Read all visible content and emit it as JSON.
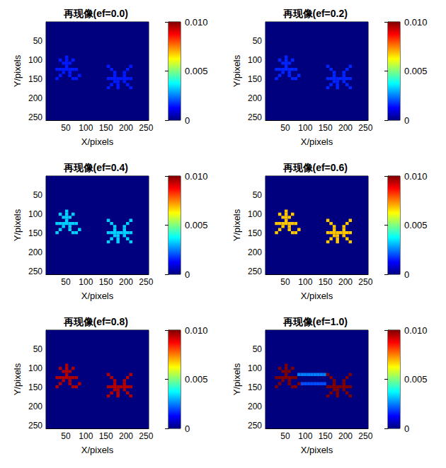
{
  "chart_data": [
    {
      "type": "heatmap",
      "title": "再现像(ef=0.0)",
      "xlabel": "X/pixels",
      "ylabel": "Y/pixels",
      "xlim": [
        0.5,
        256.5
      ],
      "ylim": [
        0.5,
        256.5
      ],
      "xticks": [
        50,
        100,
        150,
        200,
        250
      ],
      "yticks": [
        50,
        100,
        150,
        200,
        250
      ],
      "cell_size": 8,
      "background_value": 0,
      "glyph_value": 0.0015,
      "glyph_cells": [
        [
          52,
          92
        ],
        [
          52,
          100
        ],
        [
          52,
          108
        ],
        [
          52,
          116
        ],
        [
          36,
          100
        ],
        [
          44,
          108
        ],
        [
          68,
          100
        ],
        [
          60,
          108
        ],
        [
          28,
          124
        ],
        [
          36,
          124
        ],
        [
          44,
          124
        ],
        [
          52,
          124
        ],
        [
          60,
          124
        ],
        [
          68,
          124
        ],
        [
          76,
          124
        ],
        [
          44,
          132
        ],
        [
          36,
          140
        ],
        [
          28,
          148
        ],
        [
          60,
          132
        ],
        [
          60,
          140
        ],
        [
          68,
          148
        ],
        [
          76,
          148
        ],
        [
          84,
          140
        ],
        [
          156,
          116
        ],
        [
          164,
          124
        ],
        [
          172,
          132
        ],
        [
          212,
          116
        ],
        [
          204,
          124
        ],
        [
          196,
          132
        ],
        [
          172,
          140
        ],
        [
          196,
          140
        ],
        [
          156,
          148
        ],
        [
          164,
          148
        ],
        [
          172,
          148
        ],
        [
          180,
          148
        ],
        [
          188,
          148
        ],
        [
          196,
          148
        ],
        [
          204,
          148
        ],
        [
          212,
          148
        ],
        [
          172,
          156
        ],
        [
          196,
          156
        ],
        [
          180,
          156
        ],
        [
          180,
          164
        ],
        [
          180,
          172
        ],
        [
          164,
          164
        ],
        [
          156,
          172
        ],
        [
          204,
          164
        ],
        [
          212,
          172
        ]
      ],
      "colorbar": {
        "range": [
          0,
          0.01
        ],
        "ticks": [
          0,
          0.005,
          {
            "value": 0.01,
            "label": "0.010"
          }
        ]
      }
    },
    {
      "type": "heatmap",
      "title": "再现像(ef=0.2)",
      "xlabel": "X/pixels",
      "ylabel": "Y/pixels",
      "xlim": [
        0.5,
        256.5
      ],
      "ylim": [
        0.5,
        256.5
      ],
      "xticks": [
        50,
        100,
        150,
        200,
        250
      ],
      "yticks": [
        50,
        100,
        150,
        200,
        250
      ],
      "cell_size": 8,
      "background_value": 0,
      "glyph_value": 0.0016,
      "glyph_cells": [
        [
          52,
          92
        ],
        [
          52,
          100
        ],
        [
          52,
          108
        ],
        [
          52,
          116
        ],
        [
          36,
          100
        ],
        [
          44,
          108
        ],
        [
          68,
          100
        ],
        [
          60,
          108
        ],
        [
          28,
          124
        ],
        [
          36,
          124
        ],
        [
          44,
          124
        ],
        [
          52,
          124
        ],
        [
          60,
          124
        ],
        [
          68,
          124
        ],
        [
          76,
          124
        ],
        [
          44,
          132
        ],
        [
          36,
          140
        ],
        [
          28,
          148
        ],
        [
          60,
          132
        ],
        [
          60,
          140
        ],
        [
          68,
          148
        ],
        [
          76,
          148
        ],
        [
          84,
          140
        ],
        [
          156,
          116
        ],
        [
          164,
          124
        ],
        [
          172,
          132
        ],
        [
          212,
          116
        ],
        [
          204,
          124
        ],
        [
          196,
          132
        ],
        [
          172,
          140
        ],
        [
          196,
          140
        ],
        [
          156,
          148
        ],
        [
          164,
          148
        ],
        [
          172,
          148
        ],
        [
          180,
          148
        ],
        [
          188,
          148
        ],
        [
          196,
          148
        ],
        [
          204,
          148
        ],
        [
          212,
          148
        ],
        [
          172,
          156
        ],
        [
          196,
          156
        ],
        [
          180,
          156
        ],
        [
          180,
          164
        ],
        [
          180,
          172
        ],
        [
          164,
          164
        ],
        [
          156,
          172
        ],
        [
          204,
          164
        ],
        [
          212,
          172
        ]
      ],
      "colorbar": {
        "range": [
          0,
          0.01
        ],
        "ticks": [
          0,
          0.005,
          {
            "value": 0.01,
            "label": "0.010"
          }
        ]
      }
    },
    {
      "type": "heatmap",
      "title": "再现像(ef=0.4)",
      "xlabel": "X/pixels",
      "ylabel": "Y/pixels",
      "xlim": [
        0.5,
        256.5
      ],
      "ylim": [
        0.5,
        256.5
      ],
      "xticks": [
        50,
        100,
        150,
        200,
        250
      ],
      "yticks": [
        50,
        100,
        150,
        200,
        250
      ],
      "cell_size": 8,
      "background_value": 0,
      "glyph_value": 0.0033,
      "glyph_cells": [
        [
          52,
          92
        ],
        [
          52,
          100
        ],
        [
          52,
          108
        ],
        [
          52,
          116
        ],
        [
          36,
          100
        ],
        [
          44,
          108
        ],
        [
          68,
          100
        ],
        [
          60,
          108
        ],
        [
          28,
          124
        ],
        [
          36,
          124
        ],
        [
          44,
          124
        ],
        [
          52,
          124
        ],
        [
          60,
          124
        ],
        [
          68,
          124
        ],
        [
          76,
          124
        ],
        [
          44,
          132
        ],
        [
          36,
          140
        ],
        [
          28,
          148
        ],
        [
          60,
          132
        ],
        [
          60,
          140
        ],
        [
          68,
          148
        ],
        [
          76,
          148
        ],
        [
          84,
          140
        ],
        [
          156,
          116
        ],
        [
          164,
          124
        ],
        [
          172,
          132
        ],
        [
          212,
          116
        ],
        [
          204,
          124
        ],
        [
          196,
          132
        ],
        [
          172,
          140
        ],
        [
          196,
          140
        ],
        [
          156,
          148
        ],
        [
          164,
          148
        ],
        [
          172,
          148
        ],
        [
          180,
          148
        ],
        [
          188,
          148
        ],
        [
          196,
          148
        ],
        [
          204,
          148
        ],
        [
          212,
          148
        ],
        [
          172,
          156
        ],
        [
          196,
          156
        ],
        [
          180,
          156
        ],
        [
          180,
          164
        ],
        [
          180,
          172
        ],
        [
          164,
          164
        ],
        [
          156,
          172
        ],
        [
          204,
          164
        ],
        [
          212,
          172
        ]
      ],
      "colorbar": {
        "range": [
          0,
          0.01
        ],
        "ticks": [
          0,
          0.005,
          {
            "value": 0.01,
            "label": "0.010"
          }
        ]
      }
    },
    {
      "type": "heatmap",
      "title": "再现像(ef=0.6)",
      "xlabel": "X/pixels",
      "ylabel": "Y/pixels",
      "xlim": [
        0.5,
        256.5
      ],
      "ylim": [
        0.5,
        256.5
      ],
      "xticks": [
        50,
        100,
        150,
        200,
        250
      ],
      "yticks": [
        50,
        100,
        150,
        200,
        250
      ],
      "cell_size": 8,
      "background_value": 0,
      "glyph_value": 0.0068,
      "glyph_cells": [
        [
          52,
          92
        ],
        [
          52,
          100
        ],
        [
          52,
          108
        ],
        [
          52,
          116
        ],
        [
          36,
          100
        ],
        [
          44,
          108
        ],
        [
          68,
          100
        ],
        [
          60,
          108
        ],
        [
          28,
          124
        ],
        [
          36,
          124
        ],
        [
          44,
          124
        ],
        [
          52,
          124
        ],
        [
          60,
          124
        ],
        [
          68,
          124
        ],
        [
          76,
          124
        ],
        [
          44,
          132
        ],
        [
          36,
          140
        ],
        [
          28,
          148
        ],
        [
          60,
          132
        ],
        [
          60,
          140
        ],
        [
          68,
          148
        ],
        [
          76,
          148
        ],
        [
          84,
          140
        ],
        [
          156,
          116
        ],
        [
          164,
          124
        ],
        [
          172,
          132
        ],
        [
          212,
          116
        ],
        [
          204,
          124
        ],
        [
          196,
          132
        ],
        [
          172,
          140
        ],
        [
          196,
          140
        ],
        [
          156,
          148
        ],
        [
          164,
          148
        ],
        [
          172,
          148
        ],
        [
          180,
          148
        ],
        [
          188,
          148
        ],
        [
          196,
          148
        ],
        [
          204,
          148
        ],
        [
          212,
          148
        ],
        [
          172,
          156
        ],
        [
          196,
          156
        ],
        [
          180,
          156
        ],
        [
          180,
          164
        ],
        [
          180,
          172
        ],
        [
          164,
          164
        ],
        [
          156,
          172
        ],
        [
          204,
          164
        ],
        [
          212,
          172
        ]
      ],
      "colorbar": {
        "range": [
          0,
          0.01
        ],
        "ticks": [
          0,
          0.005,
          {
            "value": 0.01,
            "label": "0.010"
          }
        ]
      }
    },
    {
      "type": "heatmap",
      "title": "再现像(ef=0.8)",
      "xlabel": "X/pixels",
      "ylabel": "Y/pixels",
      "xlim": [
        0.5,
        256.5
      ],
      "ylim": [
        0.5,
        256.5
      ],
      "xticks": [
        50,
        100,
        150,
        200,
        250
      ],
      "yticks": [
        50,
        100,
        150,
        200,
        250
      ],
      "cell_size": 8,
      "background_value": 0,
      "glyph_value": 0.0095,
      "glyph_cells": [
        [
          52,
          92
        ],
        [
          52,
          100
        ],
        [
          52,
          108
        ],
        [
          52,
          116
        ],
        [
          36,
          100
        ],
        [
          44,
          108
        ],
        [
          68,
          100
        ],
        [
          60,
          108
        ],
        [
          28,
          124
        ],
        [
          36,
          124
        ],
        [
          44,
          124
        ],
        [
          52,
          124
        ],
        [
          60,
          124
        ],
        [
          68,
          124
        ],
        [
          76,
          124
        ],
        [
          44,
          132
        ],
        [
          36,
          140
        ],
        [
          28,
          148
        ],
        [
          60,
          132
        ],
        [
          60,
          140
        ],
        [
          68,
          148
        ],
        [
          76,
          148
        ],
        [
          84,
          140
        ],
        [
          156,
          116
        ],
        [
          164,
          124
        ],
        [
          172,
          132
        ],
        [
          212,
          116
        ],
        [
          204,
          124
        ],
        [
          196,
          132
        ],
        [
          172,
          140
        ],
        [
          196,
          140
        ],
        [
          156,
          148
        ],
        [
          164,
          148
        ],
        [
          172,
          148
        ],
        [
          180,
          148
        ],
        [
          188,
          148
        ],
        [
          196,
          148
        ],
        [
          204,
          148
        ],
        [
          212,
          148
        ],
        [
          172,
          156
        ],
        [
          196,
          156
        ],
        [
          180,
          156
        ],
        [
          180,
          164
        ],
        [
          180,
          172
        ],
        [
          164,
          164
        ],
        [
          156,
          172
        ],
        [
          204,
          164
        ],
        [
          212,
          172
        ]
      ],
      "colorbar": {
        "range": [
          0,
          0.01
        ],
        "ticks": [
          0,
          0.005,
          {
            "value": 0.01,
            "label": "0.010"
          }
        ]
      }
    },
    {
      "type": "heatmap",
      "title": "再现像(ef=1.0)",
      "xlabel": "X/pixels",
      "ylabel": "Y/pixels",
      "xlim": [
        0.5,
        256.5
      ],
      "ylim": [
        0.5,
        256.5
      ],
      "xticks": [
        50,
        100,
        150,
        200,
        250
      ],
      "yticks": [
        50,
        100,
        150,
        200,
        250
      ],
      "cell_size": 8,
      "background_value": 0,
      "glyph_value": 0.01,
      "glyph_cells": [
        [
          52,
          92
        ],
        [
          52,
          100
        ],
        [
          52,
          108
        ],
        [
          52,
          116
        ],
        [
          36,
          100
        ],
        [
          44,
          108
        ],
        [
          68,
          100
        ],
        [
          60,
          108
        ],
        [
          28,
          124
        ],
        [
          36,
          124
        ],
        [
          44,
          124
        ],
        [
          52,
          124
        ],
        [
          60,
          124
        ],
        [
          68,
          124
        ],
        [
          76,
          124
        ],
        [
          44,
          132
        ],
        [
          36,
          140
        ],
        [
          28,
          148
        ],
        [
          60,
          132
        ],
        [
          60,
          140
        ],
        [
          68,
          148
        ],
        [
          76,
          148
        ],
        [
          84,
          140
        ],
        [
          156,
          116
        ],
        [
          164,
          124
        ],
        [
          172,
          132
        ],
        [
          212,
          116
        ],
        [
          204,
          124
        ],
        [
          196,
          132
        ],
        [
          172,
          140
        ],
        [
          196,
          140
        ],
        [
          156,
          148
        ],
        [
          164,
          148
        ],
        [
          172,
          148
        ],
        [
          180,
          148
        ],
        [
          188,
          148
        ],
        [
          196,
          148
        ],
        [
          204,
          148
        ],
        [
          212,
          148
        ],
        [
          172,
          156
        ],
        [
          196,
          156
        ],
        [
          180,
          156
        ],
        [
          180,
          164
        ],
        [
          180,
          172
        ],
        [
          164,
          164
        ],
        [
          156,
          172
        ],
        [
          204,
          164
        ],
        [
          212,
          172
        ]
      ],
      "streak_cells": [
        [
          84,
          116,
          0.0025
        ],
        [
          92,
          116,
          0.0025
        ],
        [
          100,
          116,
          0.0025
        ],
        [
          108,
          116,
          0.0025
        ],
        [
          116,
          116,
          0.0025
        ],
        [
          124,
          116,
          0.0025
        ],
        [
          132,
          116,
          0.0025
        ],
        [
          140,
          116,
          0.0025
        ],
        [
          148,
          116,
          0.0025
        ],
        [
          92,
          140,
          0.002
        ],
        [
          100,
          140,
          0.002
        ],
        [
          108,
          140,
          0.002
        ],
        [
          116,
          140,
          0.002
        ],
        [
          124,
          140,
          0.002
        ],
        [
          132,
          140,
          0.002
        ],
        [
          140,
          140,
          0.002
        ],
        [
          148,
          140,
          0.002
        ]
      ],
      "colorbar": {
        "range": [
          0,
          0.01
        ],
        "ticks": [
          0,
          0.005,
          {
            "value": 0.01,
            "label": "0.010"
          }
        ]
      }
    }
  ]
}
